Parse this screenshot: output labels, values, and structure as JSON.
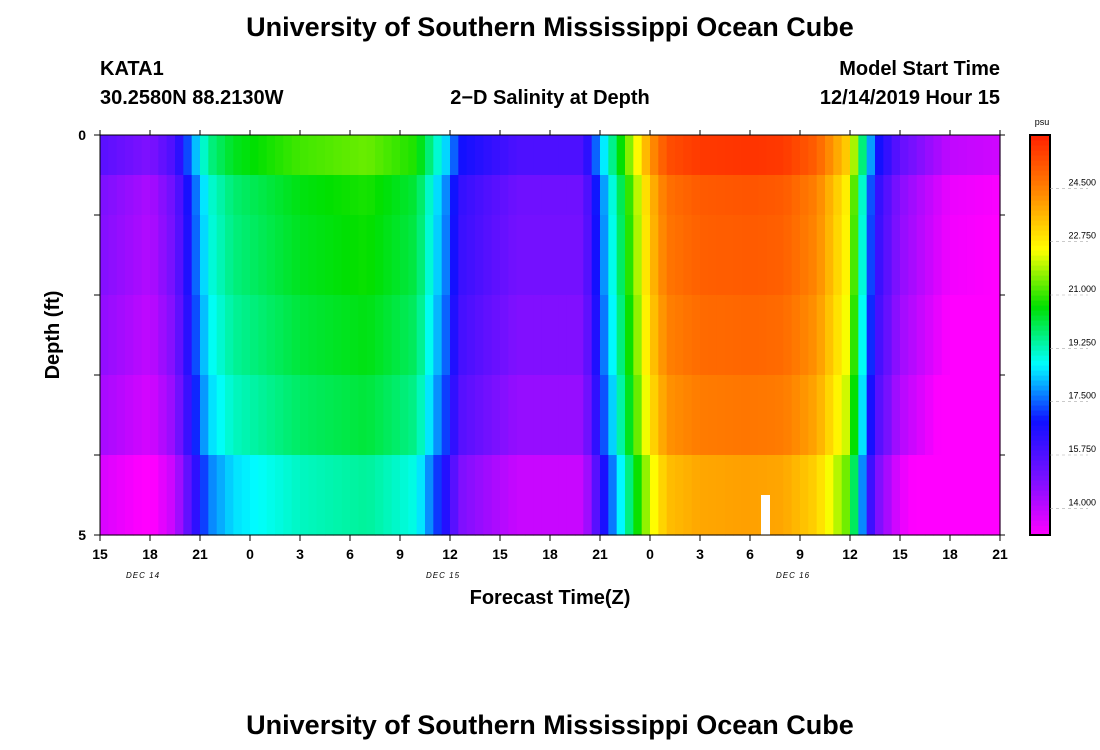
{
  "header": {
    "title": "University of Southern Mississippi Ocean Cube",
    "station_id": "KATA1",
    "station_coords": "30.2580N 88.2130W",
    "plot_title": "2−D Salinity at Depth",
    "model_start_label": "Model Start Time",
    "model_start_value": "12/14/2019 Hour 15"
  },
  "footer": {
    "title": "University of Southern Mississippi Ocean Cube"
  },
  "chart_data": {
    "type": "heatmap",
    "title": "2−D Salinity at Depth",
    "xlabel": "Forecast Time(Z)",
    "ylabel": "Depth (ft)",
    "x_tick_labels": [
      "15",
      "18",
      "21",
      "0",
      "3",
      "6",
      "9",
      "12",
      "15",
      "18",
      "21",
      "0",
      "3",
      "6",
      "9",
      "12",
      "15",
      "18",
      "21"
    ],
    "x_date_labels": [
      {
        "tick_index": 1,
        "text": "DEC 14"
      },
      {
        "tick_index": 7,
        "text": "DEC 15"
      },
      {
        "tick_index": 14,
        "text": "DEC 16"
      }
    ],
    "xlim_hours": [
      0,
      54
    ],
    "y_tick_labels": [
      {
        "depth": 0,
        "text": "0"
      },
      {
        "depth": 5,
        "text": "5"
      }
    ],
    "ylim": [
      0,
      5
    ],
    "depth_levels": [
      0.25,
      0.75,
      1.75,
      2.75,
      3.75,
      4.75
    ],
    "level_offsets": [
      0.6,
      0.0,
      -0.1,
      -0.3,
      -0.6,
      -1.3
    ],
    "anchor_hours": [
      0,
      3,
      4.5,
      5.5,
      6.5,
      8,
      12,
      16,
      19,
      20,
      21,
      21.5,
      25,
      29,
      30,
      31,
      32,
      33,
      34,
      36,
      39,
      41,
      43,
      45,
      45.5,
      46.5,
      48,
      51,
      54
    ],
    "anchor_salinity": [
      15.0,
      14.3,
      15.3,
      17.2,
      19.0,
      19.8,
      20.5,
      20.8,
      20.2,
      18.8,
      17.5,
      16.3,
      15.2,
      15.2,
      17.5,
      19.5,
      21.5,
      23.5,
      24.8,
      25.2,
      25.3,
      25.2,
      24.5,
      22.5,
      20.0,
      16.5,
      14.8,
      13.4,
      13.2
    ],
    "gap": {
      "hour": 39.9,
      "depth_from": 4.5,
      "depth_to": 5.0
    },
    "colorbar": {
      "unit": "psu",
      "min": 13.125,
      "max": 26.25,
      "ticks": [
        "24.500",
        "22.750",
        "21.000",
        "19.250",
        "17.500",
        "15.750",
        "14.000"
      ],
      "tick_values": [
        24.5,
        22.75,
        21.0,
        19.25,
        17.5,
        15.75,
        14.0
      ],
      "colors": [
        "#ff00ff",
        "#7a10ff",
        "#1010ff",
        "#00ffff",
        "#00e000",
        "#ffff00",
        "#ff8800",
        "#ff2000"
      ]
    },
    "grid": false,
    "legend": "colorbar-right"
  }
}
